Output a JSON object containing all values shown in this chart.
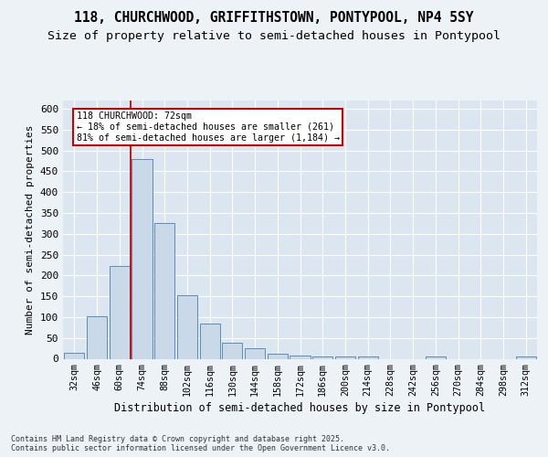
{
  "title1": "118, CHURCHWOOD, GRIFFITHSTOWN, PONTYPOOL, NP4 5SY",
  "title2": "Size of property relative to semi-detached houses in Pontypool",
  "xlabel": "Distribution of semi-detached houses by size in Pontypool",
  "ylabel": "Number of semi-detached properties",
  "categories": [
    "32sqm",
    "46sqm",
    "60sqm",
    "74sqm",
    "88sqm",
    "102sqm",
    "116sqm",
    "130sqm",
    "144sqm",
    "158sqm",
    "172sqm",
    "186sqm",
    "200sqm",
    "214sqm",
    "228sqm",
    "242sqm",
    "256sqm",
    "270sqm",
    "284sqm",
    "298sqm",
    "312sqm"
  ],
  "values": [
    15,
    103,
    222,
    480,
    325,
    152,
    84,
    38,
    25,
    11,
    8,
    5,
    5,
    5,
    0,
    0,
    5,
    0,
    0,
    0,
    5
  ],
  "bar_color": "#c9d9e8",
  "bar_edge_color": "#5b8db8",
  "background_color": "#dce6f0",
  "property_size": "72sqm",
  "property_name": "118 CHURCHWOOD",
  "pct_smaller": 18,
  "count_smaller": 261,
  "pct_larger": 81,
  "count_larger": 1184,
  "annotation_box_color": "#ffffff",
  "annotation_box_edge": "#cc0000",
  "red_line_x": 2.5,
  "ylim": [
    0,
    620
  ],
  "yticks": [
    0,
    50,
    100,
    150,
    200,
    250,
    300,
    350,
    400,
    450,
    500,
    550,
    600
  ],
  "footnote": "Contains HM Land Registry data © Crown copyright and database right 2025.\nContains public sector information licensed under the Open Government Licence v3.0.",
  "fig_bg": "#edf2f7",
  "title_fontsize": 10.5,
  "subtitle_fontsize": 9.5
}
